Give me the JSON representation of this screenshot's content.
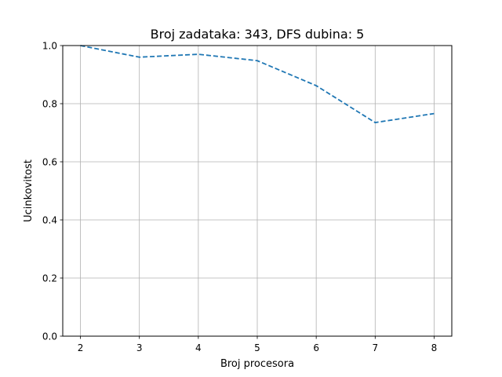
{
  "chart_data": {
    "type": "line",
    "title": "Broj zadataka: 343, DFS dubina: 5",
    "xlabel": "Broj procesora",
    "ylabel": "Ucinkovitost",
    "x": [
      2,
      3,
      4,
      5,
      6,
      7,
      8
    ],
    "series": [
      {
        "values": [
          1.0,
          0.96,
          0.97,
          0.948,
          0.862,
          0.735,
          0.766
        ],
        "color": "#1f77b4",
        "linestyle": "dashed"
      }
    ],
    "xlim": [
      1.7,
      8.3
    ],
    "ylim": [
      0,
      1.0
    ],
    "xticks": [
      2,
      3,
      4,
      5,
      6,
      7,
      8
    ],
    "yticks": [
      0.0,
      0.2,
      0.4,
      0.6,
      0.8,
      1.0
    ],
    "grid": true
  }
}
